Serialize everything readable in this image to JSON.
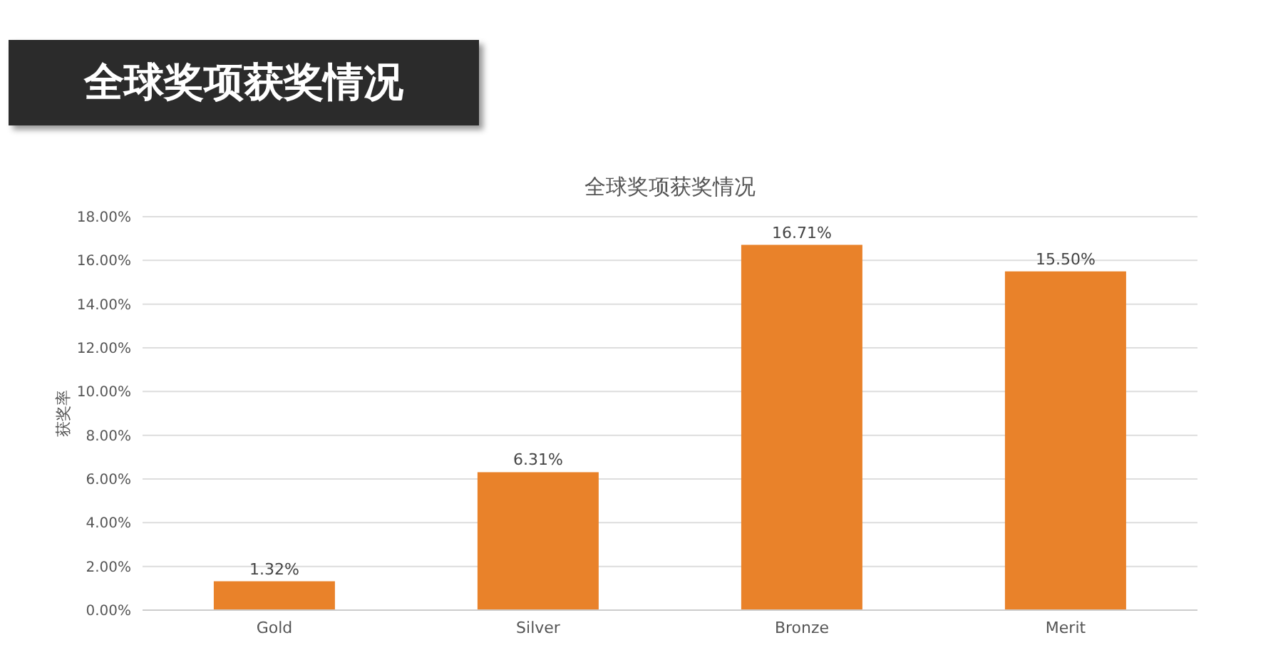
{
  "chart_data": {
    "type": "bar",
    "title": "全球奖项获奖情况",
    "subtitle": "全球奖项获奖情况",
    "ylabel": "获奖率",
    "categories": [
      "Gold",
      "Silver",
      "Bronze",
      "Merit"
    ],
    "values": [
      1.32,
      6.31,
      16.71,
      15.5
    ],
    "value_labels": [
      "1.32%",
      "6.31%",
      "16.71%",
      "15.50%"
    ],
    "color": "#e9822a",
    "ylim": [
      0,
      18
    ],
    "yticks": [
      {
        "value": 0,
        "label": "0.00%"
      },
      {
        "value": 2,
        "label": "2.00%"
      },
      {
        "value": 4,
        "label": "4.00%"
      },
      {
        "value": 6,
        "label": "6.00%"
      },
      {
        "value": 8,
        "label": "8.00%"
      },
      {
        "value": 10,
        "label": "10.00%"
      },
      {
        "value": 12,
        "label": "12.00%"
      },
      {
        "value": 14,
        "label": "14.00%"
      },
      {
        "value": 16,
        "label": "16.00%"
      },
      {
        "value": 18,
        "label": "18.00%"
      }
    ],
    "grid": "y",
    "legend": false
  }
}
